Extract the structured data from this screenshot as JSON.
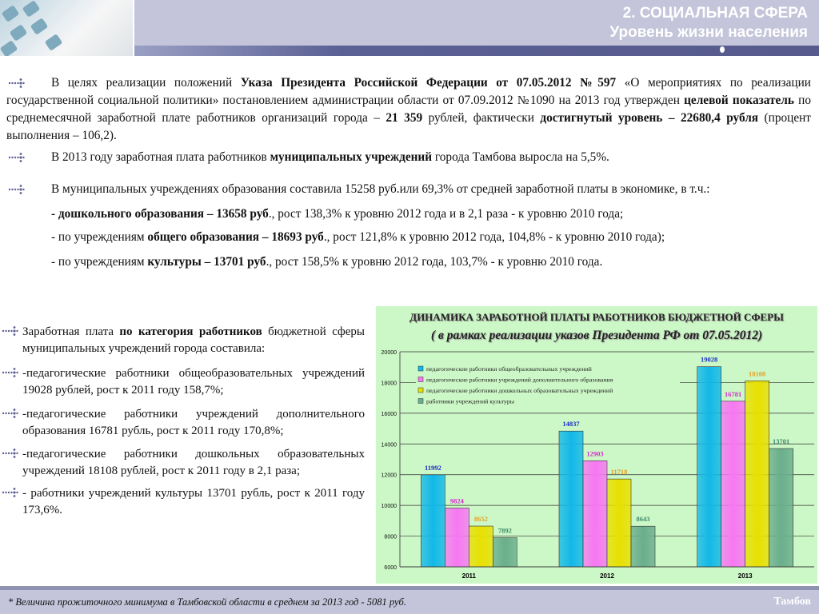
{
  "header": {
    "section": "2. СОЦИАЛЬНАЯ СФЕРА",
    "subtitle": "Уровень жизни населения"
  },
  "top_paragraphs": [
    [
      {
        "t": "В целях реализации положений "
      },
      {
        "t": "Указа Президента Российской Федерации от 07.05.2012 №597",
        "b": true
      },
      {
        "t": " «О мероприятиях по реализации государственной социальной политики» постановлением администрации области от 07.09.2012 №1090 на 2013 год утвержден "
      },
      {
        "t": "целевой показатель",
        "b": true
      },
      {
        "t": " по среднемесячной заработной плате работников организаций города – "
      },
      {
        "t": "21 359",
        "b": true
      },
      {
        "t": " рублей, фактически "
      },
      {
        "t": "достигнутый уровень – 22680,4 рубля",
        "b": true
      },
      {
        "t": " (процент выполнения – 106,2)."
      }
    ],
    [
      {
        "t": "В 2013 году заработная плата работников "
      },
      {
        "t": "муниципальных учреждений",
        "b": true
      },
      {
        "t": " города Тамбова выросла на 5,5%."
      }
    ],
    [
      {
        "t": "В муниципальных учреждениях образования составила 15258 руб.или 69,3% от средней заработной платы в экономике, в т.ч.:"
      }
    ],
    [
      {
        "t": "- дошкольного образования – 13658 руб",
        "b": true
      },
      {
        "t": "., рост 138,3% к уровню 2012 года и в 2,1 раза - к уровню 2010 года;"
      }
    ],
    [
      {
        "t": "- по учреждениям "
      },
      {
        "t": "общего образования – 18693 руб",
        "b": true
      },
      {
        "t": "., рост 121,8% к уровню 2012 года, 104,8% - к уровню 2010 года);"
      }
    ],
    [
      {
        "t": "- по учреждениям "
      },
      {
        "t": "культуры – 13701 руб",
        "b": true
      },
      {
        "t": "., рост 158,5% к уровню 2012 года, 103,7% - к уровню 2010 года."
      }
    ]
  ],
  "left_paragraphs": [
    [
      {
        "t": "Заработная плата "
      },
      {
        "t": "по категория работников",
        "b": true
      },
      {
        "t": " бюджетной сферы муниципальных учреждений города составила:"
      }
    ],
    [
      {
        "t": "-педагогические работники общеобразовательных учреждений 19028 рублей, рост к 2011 году 158,7%;"
      }
    ],
    [
      {
        "t": "-педагогические работники учреждений дополнительного образования 16781 рубль, рост к 2011 году 170,8%;"
      }
    ],
    [
      {
        "t": "-педагогические работники дошкольных образовательных учреждений 18108 рублей, рост к 2011 году в 2,1 раза;"
      }
    ],
    [
      {
        "t": "- работники учреждений культуры 13701 рубль, рост к 2011 году 173,6%."
      }
    ]
  ],
  "chart_data": {
    "type": "bar",
    "title": "ДИНАМИКА ЗАРАБОТНОЙ ПЛАТЫ РАБОТНИКОВ БЮДЖЕТНОЙ СФЕРЫ",
    "subtitle": "( в рамках реализации указов Президента РФ от 07.05.2012)",
    "categories": [
      "2011",
      "2012",
      "2013"
    ],
    "ylim": [
      6000,
      20000
    ],
    "yticks": [
      6000,
      8000,
      10000,
      12000,
      14000,
      16000,
      18000,
      20000
    ],
    "grid": true,
    "legend": "top-left",
    "series": [
      {
        "name": "педагогические работники общеобразовательных учреждений",
        "values": [
          11992,
          14837,
          19028
        ],
        "color": "#12b8e8",
        "label_color": "#1a2fc8"
      },
      {
        "name": "педагогические работники учреждений дополнительного образования",
        "values": [
          9824,
          12903,
          16781
        ],
        "color": "#f777f2",
        "label_color": "#d62ad0"
      },
      {
        "name": "педагогические работники дошкольных образовательных учреждений",
        "values": [
          8652,
          11718,
          18108
        ],
        "color": "#e8e000",
        "label_color": "#e8a020"
      },
      {
        "name": "работники учреждений культуры",
        "values": [
          7892,
          8643,
          13701
        ],
        "color": "#6aae8c",
        "label_color": "#3c8a6a"
      }
    ]
  },
  "footer": {
    "note": "* Величина прожиточного минимума в Тамбовской области в среднем за 2013 год - 5081 руб.",
    "city": "Тамбов"
  }
}
